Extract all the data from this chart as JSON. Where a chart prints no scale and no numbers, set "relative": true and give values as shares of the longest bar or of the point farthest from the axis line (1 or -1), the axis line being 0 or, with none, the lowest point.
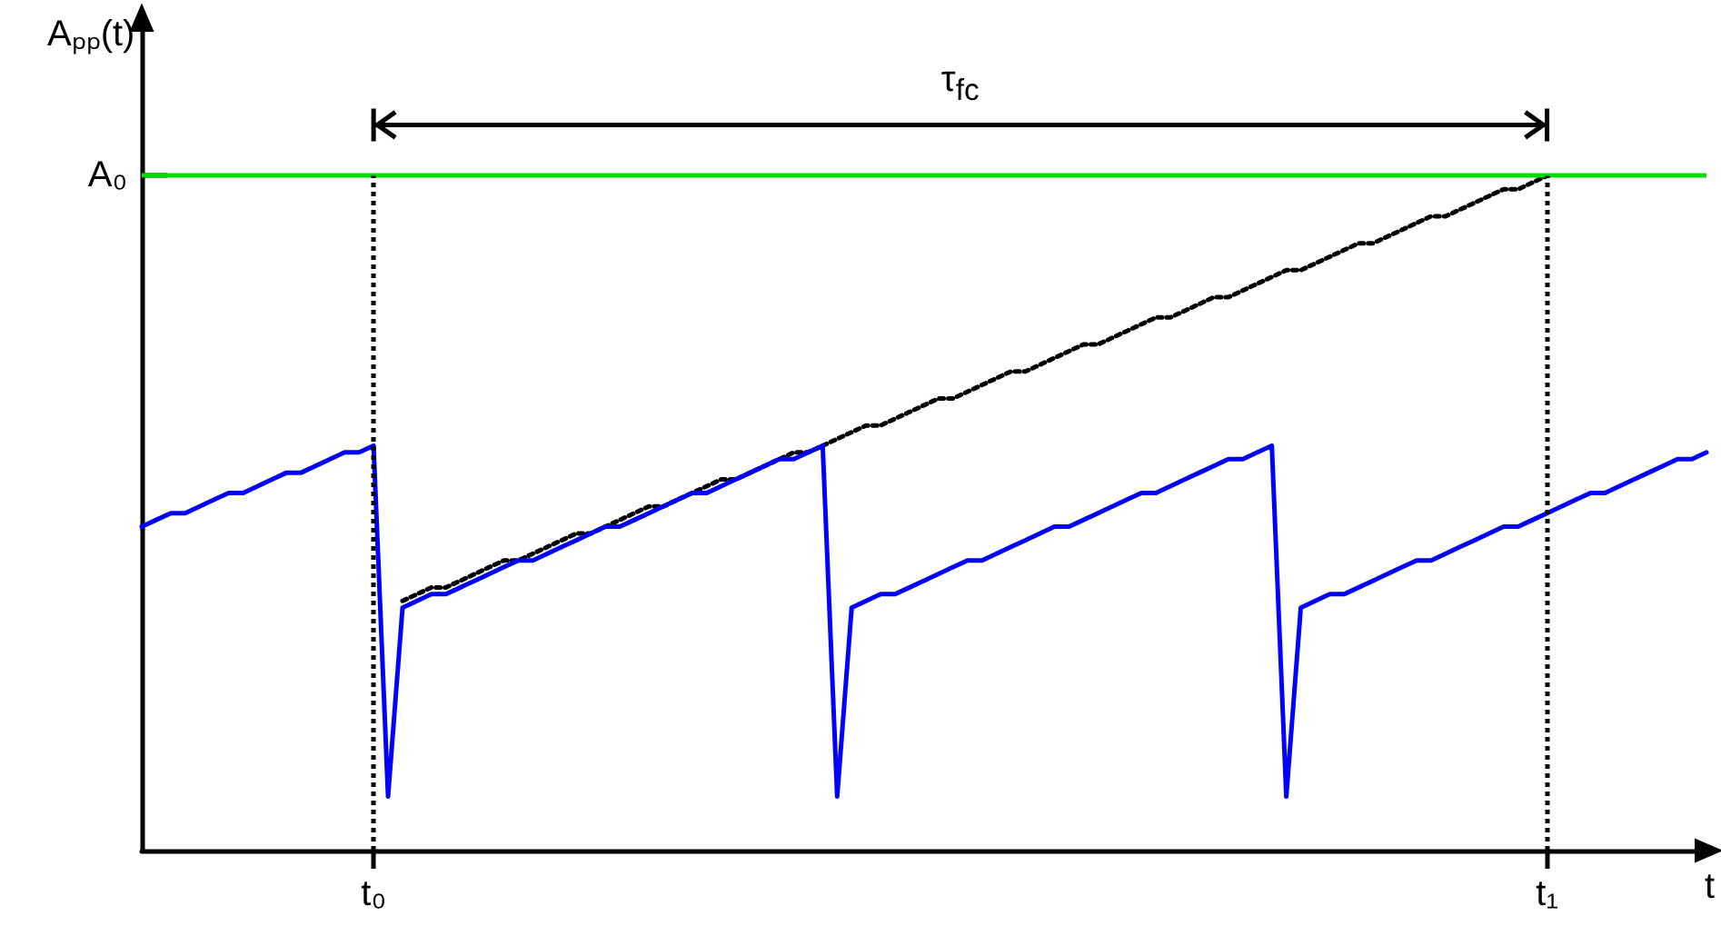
{
  "chart_data": {
    "type": "line",
    "relative": true,
    "xlabel": "t",
    "ylabel": "Aₚₚ(t)",
    "annotations": [
      "τ$_{fc}$"
    ],
    "categories": [
      null,
      null,
      null,
      null,
      null,
      null,
      null,
      null,
      null,
      null,
      null,
      null,
      null,
      null,
      null,
      null,
      "t₀",
      null,
      null,
      null,
      null,
      null,
      null,
      null,
      null,
      null,
      null,
      null,
      null,
      null,
      null,
      null,
      null,
      null,
      null,
      null,
      null,
      null,
      null,
      null,
      null,
      null,
      null,
      null,
      null,
      null,
      null,
      null,
      null,
      null,
      null,
      null,
      null,
      null,
      null,
      null,
      null,
      null,
      null,
      null,
      null,
      null,
      null,
      null,
      null,
      null,
      null,
      null,
      null,
      null,
      null,
      null,
      null,
      null,
      null,
      null,
      null,
      null,
      null,
      null,
      null,
      null,
      null,
      null,
      null,
      null,
      null,
      null,
      null,
      null,
      null,
      null,
      null,
      null,
      null,
      null,
      null,
      "t₁",
      null,
      null,
      null,
      null,
      null,
      null,
      null,
      null,
      null,
      null,
      null
    ],
    "series": [
      {
        "color": "#0000ff",
        "line_style": "solid",
        "values": [
          0.48,
          0.49,
          0.5,
          0.5,
          0.51,
          0.52,
          0.53,
          0.53,
          0.54,
          0.55,
          0.56,
          0.56,
          0.57,
          0.58,
          0.59,
          0.59,
          0.6,
          0.08,
          0.36,
          0.37,
          0.38,
          0.38,
          0.39,
          0.4,
          0.41,
          0.42,
          0.43,
          0.43,
          0.44,
          0.45,
          0.46,
          0.47,
          0.48,
          0.48,
          0.49,
          0.5,
          0.51,
          0.52,
          0.53,
          0.53,
          0.54,
          0.55,
          0.56,
          0.57,
          0.58,
          0.58,
          0.59,
          0.6,
          0.08,
          0.36,
          0.37,
          0.38,
          0.38,
          0.39,
          0.4,
          0.41,
          0.42,
          0.43,
          0.43,
          0.44,
          0.45,
          0.46,
          0.47,
          0.48,
          0.48,
          0.49,
          0.5,
          0.51,
          0.52,
          0.53,
          0.53,
          0.54,
          0.55,
          0.56,
          0.57,
          0.58,
          0.58,
          0.59,
          0.6,
          0.08,
          0.36,
          0.37,
          0.38,
          0.38,
          0.39,
          0.4,
          0.41,
          0.42,
          0.43,
          0.43,
          0.44,
          0.45,
          0.46,
          0.47,
          0.48,
          0.48,
          0.49,
          0.5,
          0.51,
          0.52,
          0.53,
          0.53,
          0.54,
          0.55,
          0.56,
          0.57,
          0.58,
          0.58,
          0.59
        ]
      },
      {
        "color": "#000000",
        "line_style": "dotted",
        "values": [
          null,
          null,
          null,
          null,
          null,
          null,
          null,
          null,
          null,
          null,
          null,
          null,
          null,
          null,
          null,
          null,
          null,
          null,
          0.37,
          0.38,
          0.39,
          0.39,
          0.4,
          0.41,
          0.42,
          0.43,
          0.43,
          0.44,
          0.45,
          0.46,
          0.47,
          0.47,
          0.48,
          0.49,
          0.5,
          0.51,
          0.51,
          0.52,
          0.53,
          0.54,
          0.55,
          0.55,
          0.56,
          0.57,
          0.58,
          0.59,
          0.59,
          0.6,
          0.61,
          0.62,
          0.63,
          0.63,
          0.64,
          0.65,
          0.66,
          0.67,
          0.67,
          0.68,
          0.69,
          0.7,
          0.71,
          0.71,
          0.72,
          0.73,
          0.74,
          0.75,
          0.75,
          0.76,
          0.77,
          0.78,
          0.79,
          0.79,
          0.8,
          0.81,
          0.82,
          0.82,
          0.83,
          0.84,
          0.85,
          0.86,
          0.86,
          0.87,
          0.88,
          0.89,
          0.9,
          0.9,
          0.91,
          0.92,
          0.93,
          0.94,
          0.94,
          0.95,
          0.96,
          0.97,
          0.98,
          0.98,
          0.99,
          1.0,
          null,
          null,
          null,
          null,
          null,
          null,
          null,
          null,
          null,
          null,
          null
        ]
      }
    ],
    "ref_lines": [
      {
        "axis": "y",
        "value": 1.0,
        "label": "A₀",
        "color": "#00dd00",
        "line_style": "solid"
      },
      {
        "axis": "x",
        "value": "t₀",
        "color": "#000000",
        "line_style": "dotted"
      },
      {
        "axis": "x",
        "value": "t₁",
        "color": "#000000",
        "line_style": "dotted"
      }
    ],
    "grid": false,
    "marker": "none"
  }
}
